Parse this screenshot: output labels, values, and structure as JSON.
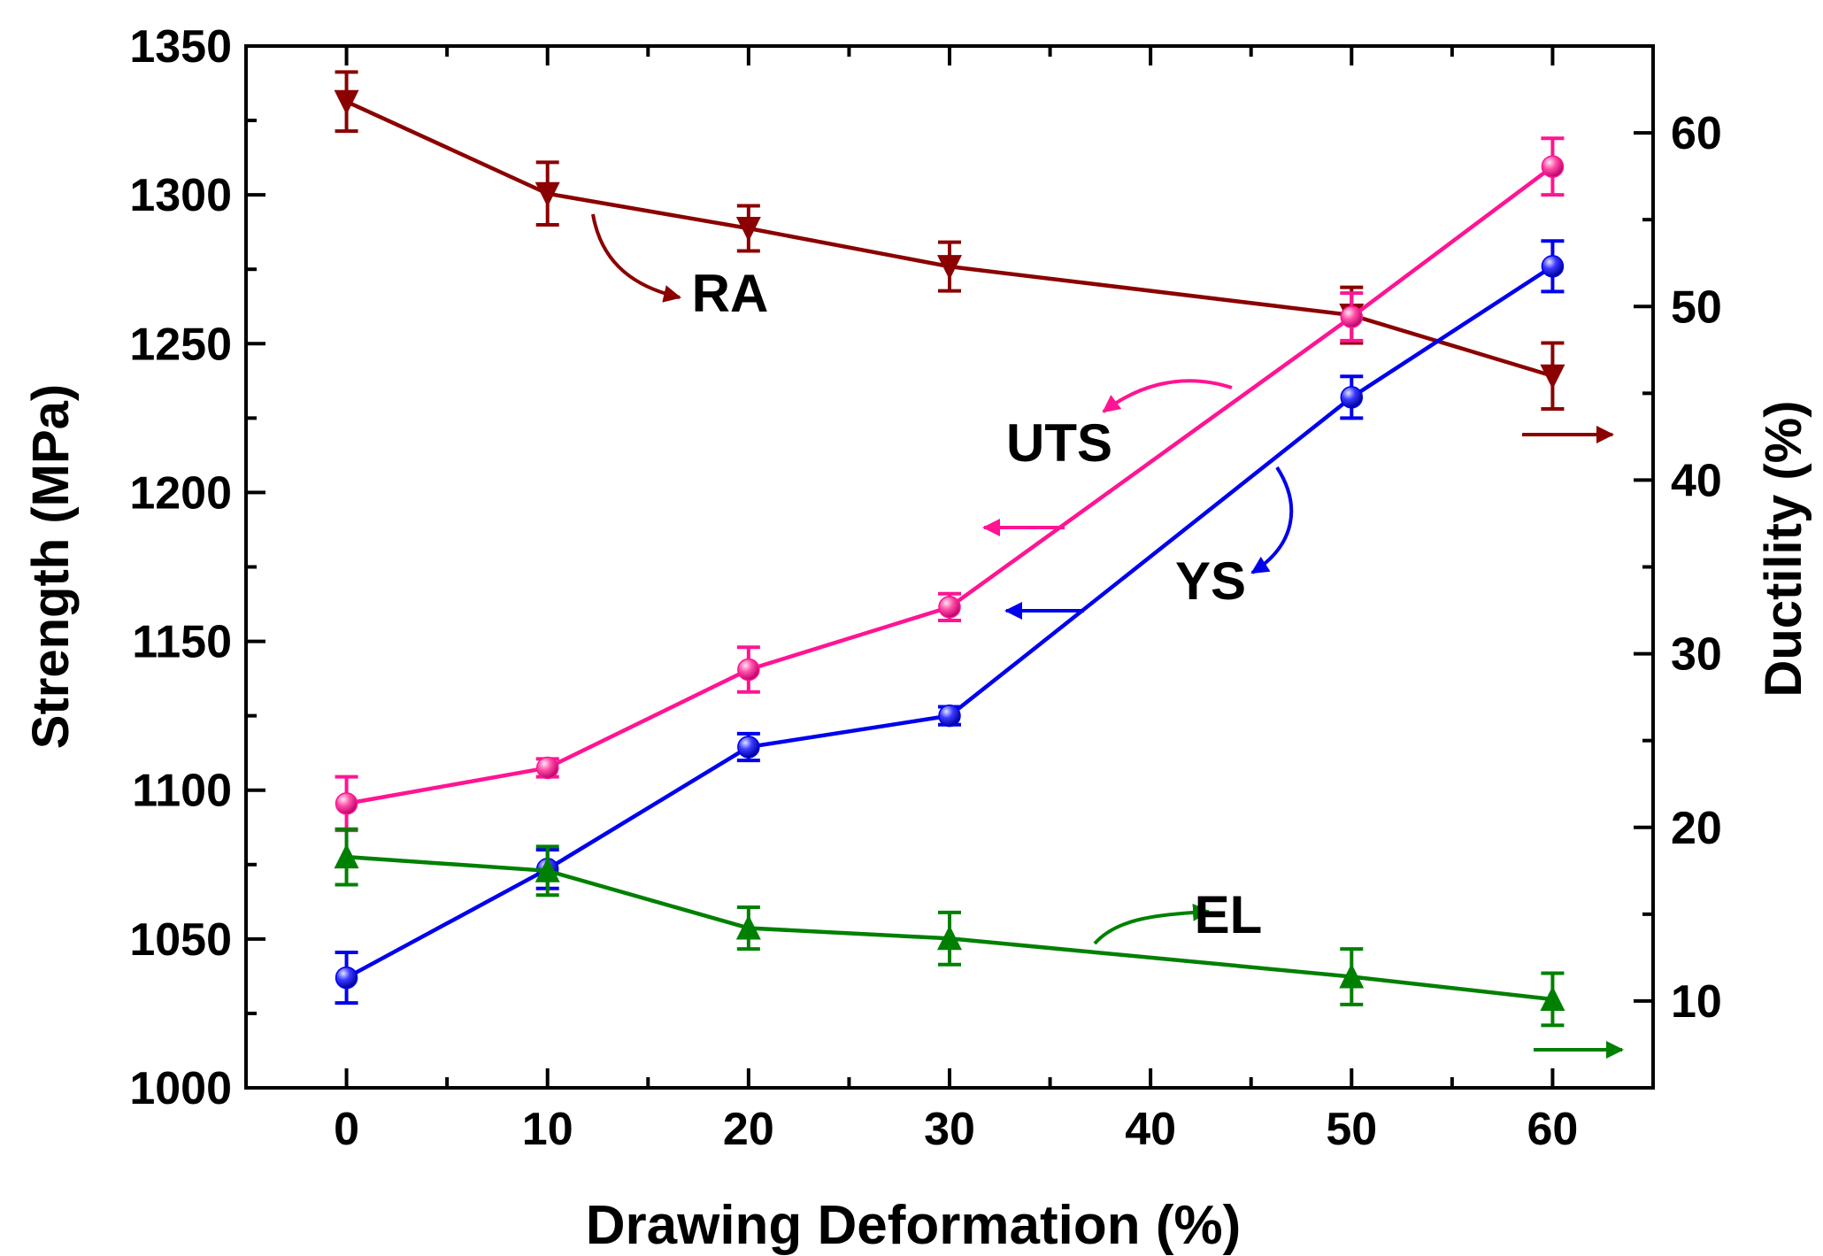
{
  "chart_data": {
    "type": "line",
    "xlabel": "Drawing Deformation (%)",
    "ylabel_left": "Strength (MPa)",
    "ylabel_right": "Ductility (%)",
    "xlim": [
      -5,
      65
    ],
    "ylim_left": [
      1000,
      1350
    ],
    "ylim_right": [
      5,
      65
    ],
    "x_ticks": [
      0,
      10,
      20,
      30,
      40,
      50,
      60
    ],
    "y_left_ticks": [
      1000,
      1050,
      1100,
      1150,
      1200,
      1250,
      1300,
      1350
    ],
    "y_right_ticks": [
      10,
      20,
      30,
      40,
      50,
      60
    ],
    "series": [
      {
        "name": "RA",
        "axis": "right",
        "marker": "triangle-down",
        "color": "#8B0000",
        "x": [
          0,
          10,
          20,
          30,
          50,
          60
        ],
        "values": [
          61.8,
          56.5,
          54.5,
          52.3,
          49.5,
          46.0
        ],
        "errors": [
          1.7,
          1.8,
          1.3,
          1.4,
          1.6,
          1.9
        ]
      },
      {
        "name": "UTS",
        "axis": "left",
        "marker": "circle",
        "color": "#FF1493",
        "x": [
          0,
          10,
          20,
          30,
          50,
          60
        ],
        "values": [
          1095.5,
          1107.5,
          1140.5,
          1161.5,
          1259,
          1309.5
        ],
        "errors": [
          9,
          3,
          7.5,
          4.5,
          8,
          9.5
        ]
      },
      {
        "name": "YS",
        "axis": "left",
        "marker": "circle",
        "color": "#0000EE",
        "x": [
          0,
          10,
          20,
          30,
          50,
          60
        ],
        "values": [
          1037,
          1073.5,
          1114.5,
          1125,
          1232,
          1276
        ],
        "errors": [
          8.5,
          6.5,
          4.5,
          3,
          7,
          8.5
        ]
      },
      {
        "name": "EL",
        "axis": "right",
        "marker": "triangle-up",
        "color": "#008000",
        "x": [
          0,
          10,
          20,
          30,
          50,
          60
        ],
        "values": [
          18.3,
          17.5,
          14.2,
          13.6,
          11.4,
          10.1
        ],
        "errors": [
          1.6,
          1.4,
          1.2,
          1.5,
          1.6,
          1.5
        ]
      }
    ],
    "annotations": [
      {
        "text": "RA",
        "series": "RA"
      },
      {
        "text": "UTS",
        "series": "UTS"
      },
      {
        "text": "YS",
        "series": "YS"
      },
      {
        "text": "EL",
        "series": "EL"
      }
    ]
  }
}
